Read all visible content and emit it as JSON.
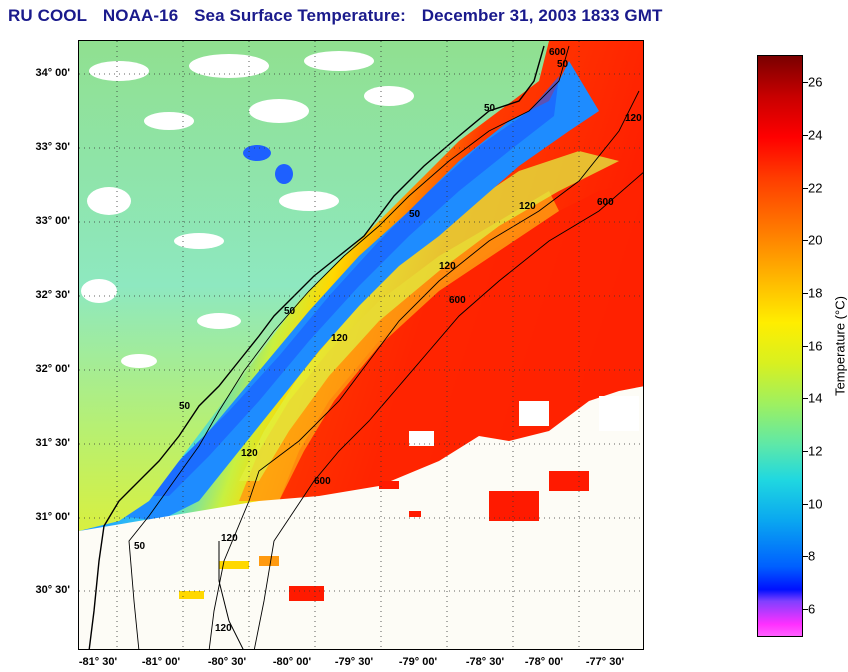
{
  "title": {
    "parts": [
      "RU COOL",
      "NOAA-16",
      "Sea Surface Temperature:",
      "December 31, 2003 1833 GMT"
    ]
  },
  "map": {
    "lat_labels": [
      "34° 00'",
      "33° 30'",
      "33° 00'",
      "32° 30'",
      "32° 00'",
      "31° 30'",
      "31° 00'",
      "30° 30'"
    ],
    "lon_labels": [
      "-81° 30'",
      "-81° 00'",
      "-80° 30'",
      "-80° 00'",
      "-79° 30'",
      "-79° 00'",
      "-78° 30'",
      "-78° 00'",
      "-77° 30'"
    ],
    "contour_labels": [
      "50",
      "50",
      "50",
      "50",
      "50",
      "120",
      "120",
      "120",
      "120",
      "120",
      "600",
      "600",
      "600",
      "600",
      "120",
      "120",
      "50"
    ]
  },
  "colorbar": {
    "label": "Temperature (°C)",
    "ticks": [
      "26",
      "24",
      "22",
      "20",
      "18",
      "16",
      "14",
      "12",
      "10",
      "8",
      "6"
    ],
    "range": [
      5,
      27
    ]
  },
  "colors": {
    "title": "#1a1a8c",
    "land": "#8fd8a0",
    "cloud": "#ffffff",
    "shelf": "#1e90ff",
    "gulfstream": "#ff1a00"
  }
}
